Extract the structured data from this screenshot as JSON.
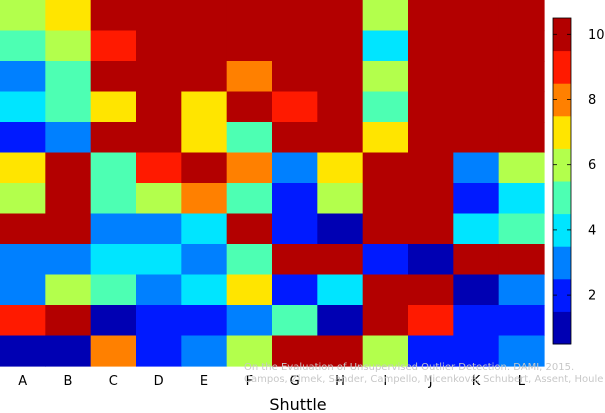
{
  "chart_data": {
    "type": "heatmap",
    "xlabel": "Shuttle",
    "categories": [
      "A",
      "B",
      "C",
      "D",
      "E",
      "F",
      "G",
      "H",
      "I",
      "J",
      "K",
      "L"
    ],
    "value_range": [
      0.5,
      10.5
    ],
    "colorbar_ticks": [
      2,
      4,
      6,
      8,
      10
    ],
    "colormap": "jet",
    "rows": 12,
    "values": [
      [
        6,
        7,
        10,
        10,
        10,
        10,
        10,
        10,
        6,
        10,
        10,
        10
      ],
      [
        5,
        6,
        9,
        10,
        10,
        10,
        10,
        10,
        4,
        10,
        10,
        10
      ],
      [
        3,
        5,
        10,
        10,
        10,
        8,
        10,
        10,
        6,
        10,
        10,
        10
      ],
      [
        4,
        5,
        7,
        10,
        7,
        10,
        9,
        10,
        5,
        10,
        10,
        10
      ],
      [
        2,
        3,
        10,
        10,
        7,
        5,
        10,
        10,
        7,
        10,
        10,
        10
      ],
      [
        7,
        10,
        5,
        9,
        10,
        8,
        3,
        7,
        10,
        10,
        3,
        6
      ],
      [
        6,
        10,
        5,
        6,
        8,
        5,
        2,
        6,
        10,
        10,
        2,
        4
      ],
      [
        10,
        10,
        3,
        3,
        4,
        10,
        2,
        1,
        10,
        10,
        4,
        5
      ],
      [
        3,
        3,
        4,
        4,
        3,
        5,
        10,
        10,
        2,
        1,
        10,
        10
      ],
      [
        3,
        6,
        5,
        3,
        4,
        7,
        2,
        4,
        10,
        10,
        1,
        3
      ],
      [
        9,
        10,
        1,
        2,
        2,
        3,
        5,
        1,
        10,
        9,
        2,
        2
      ],
      [
        1,
        1,
        8,
        2,
        3,
        6,
        10,
        10,
        6,
        2,
        2,
        3
      ]
    ]
  },
  "watermark": {
    "line1": "On the Evaluation of Unsupervised Outlier Detection. DAMI, 2015.",
    "line2": "Campos, Zimek, Sander, Campello, Micenková, Schubert, Assent, Houle"
  }
}
